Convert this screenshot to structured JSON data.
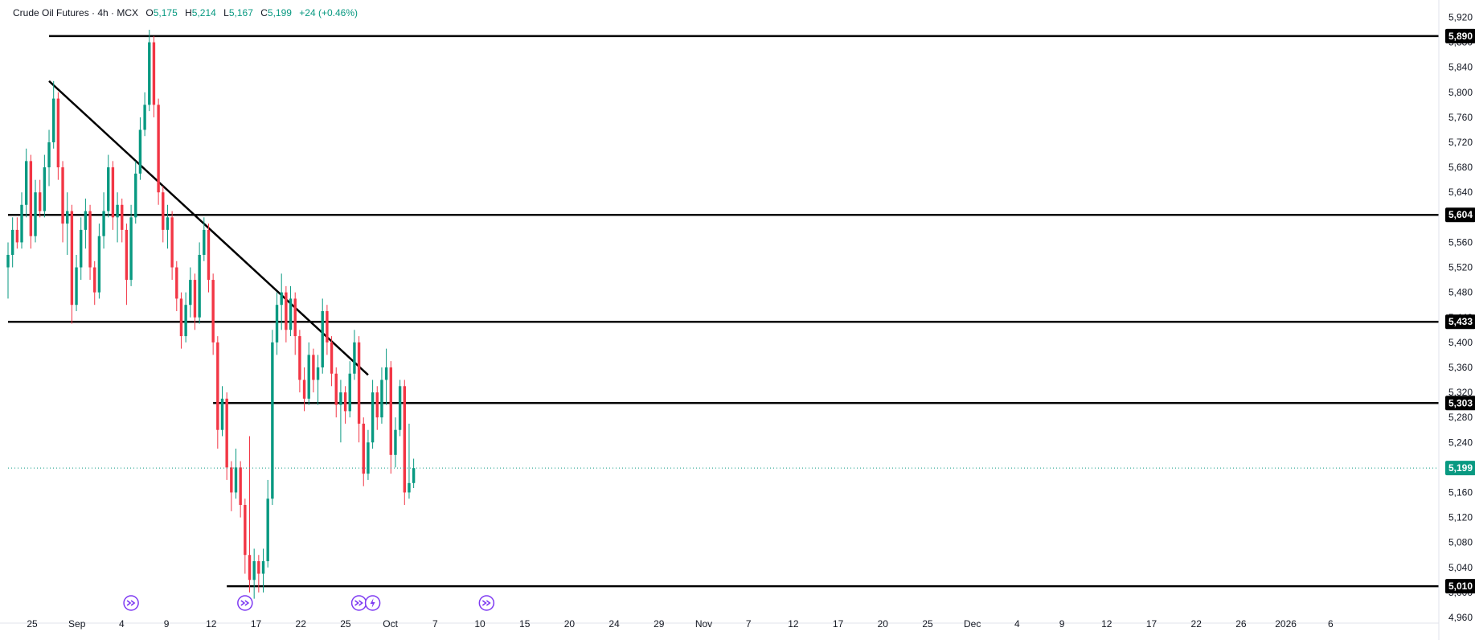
{
  "header": {
    "symbol": "Crude Oil Futures · 4h · MCX",
    "o_label": "O",
    "o_value": "5,175",
    "h_label": "H",
    "h_value": "5,214",
    "l_label": "L",
    "l_value": "5,167",
    "c_label": "C",
    "c_value": "5,199",
    "change": "+24 (+0.46%)"
  },
  "colors": {
    "up": "#089981",
    "down": "#f23645",
    "line": "#000000",
    "text": "#131722",
    "price_tag": "#089981",
    "event_icon": "#7e3af2"
  },
  "chart_data": {
    "type": "candlestick",
    "title": "Crude Oil Futures · 4h · MCX",
    "ylim": [
      4940,
      5940
    ],
    "y_ticks": [
      4960,
      5000,
      5040,
      5080,
      5120,
      5160,
      5200,
      5240,
      5280,
      5320,
      5360,
      5400,
      5440,
      5480,
      5520,
      5560,
      5600,
      5640,
      5680,
      5720,
      5760,
      5800,
      5840,
      5880,
      5920
    ],
    "x_tick_labels": [
      "25",
      "Sep",
      "4",
      "9",
      "12",
      "17",
      "22",
      "25",
      "Oct",
      "7",
      "10",
      "15",
      "20",
      "24",
      "29",
      "Nov",
      "7",
      "12",
      "17",
      "20",
      "25",
      "Dec",
      "4",
      "9",
      "12",
      "17",
      "22",
      "26",
      "2026",
      "6"
    ],
    "last_price": 5199,
    "last_price_label": "5,199",
    "horizontal_levels": [
      {
        "value": 5890,
        "label": "5,890",
        "from_index": 9
      },
      {
        "value": 5604,
        "label": "5,604",
        "from_index": 0
      },
      {
        "value": 5433,
        "label": "5,433",
        "from_index": 0
      },
      {
        "value": 5303,
        "label": "5,303",
        "from_index": 45
      },
      {
        "value": 5010,
        "label": "5,010",
        "from_index": 48
      }
    ],
    "trendline": {
      "start": {
        "x_index": 9,
        "price": 5818
      },
      "end": {
        "x_index": 79,
        "price": 5348
      }
    },
    "event_markers": [
      {
        "x_index": 27,
        "type": "dividend-icon"
      },
      {
        "x_index": 52,
        "type": "dividend-icon"
      },
      {
        "x_index": 77,
        "type": "dividend-icon"
      },
      {
        "x_index": 80,
        "type": "lightning-icon"
      },
      {
        "x_index": 105,
        "type": "dividend-icon"
      }
    ],
    "candles": [
      {
        "o": 5520,
        "h": 5560,
        "l": 5470,
        "c": 5540
      },
      {
        "o": 5540,
        "h": 5600,
        "l": 5520,
        "c": 5580
      },
      {
        "o": 5580,
        "h": 5600,
        "l": 5550,
        "c": 5560
      },
      {
        "o": 5560,
        "h": 5640,
        "l": 5550,
        "c": 5620
      },
      {
        "o": 5620,
        "h": 5710,
        "l": 5600,
        "c": 5690
      },
      {
        "o": 5690,
        "h": 5700,
        "l": 5550,
        "c": 5570
      },
      {
        "o": 5570,
        "h": 5660,
        "l": 5560,
        "c": 5640
      },
      {
        "o": 5640,
        "h": 5660,
        "l": 5600,
        "c": 5610
      },
      {
        "o": 5610,
        "h": 5700,
        "l": 5600,
        "c": 5680
      },
      {
        "o": 5680,
        "h": 5740,
        "l": 5650,
        "c": 5720
      },
      {
        "o": 5720,
        "h": 5818,
        "l": 5710,
        "c": 5790
      },
      {
        "o": 5790,
        "h": 5800,
        "l": 5660,
        "c": 5680
      },
      {
        "o": 5680,
        "h": 5690,
        "l": 5560,
        "c": 5590
      },
      {
        "o": 5590,
        "h": 5640,
        "l": 5540,
        "c": 5610
      },
      {
        "o": 5610,
        "h": 5620,
        "l": 5430,
        "c": 5460
      },
      {
        "o": 5460,
        "h": 5540,
        "l": 5450,
        "c": 5520
      },
      {
        "o": 5520,
        "h": 5600,
        "l": 5500,
        "c": 5580
      },
      {
        "o": 5580,
        "h": 5630,
        "l": 5550,
        "c": 5610
      },
      {
        "o": 5610,
        "h": 5620,
        "l": 5500,
        "c": 5520
      },
      {
        "o": 5520,
        "h": 5530,
        "l": 5460,
        "c": 5480
      },
      {
        "o": 5480,
        "h": 5590,
        "l": 5470,
        "c": 5570
      },
      {
        "o": 5570,
        "h": 5640,
        "l": 5550,
        "c": 5610
      },
      {
        "o": 5610,
        "h": 5700,
        "l": 5600,
        "c": 5680
      },
      {
        "o": 5680,
        "h": 5690,
        "l": 5580,
        "c": 5600
      },
      {
        "o": 5600,
        "h": 5640,
        "l": 5560,
        "c": 5620
      },
      {
        "o": 5620,
        "h": 5630,
        "l": 5560,
        "c": 5580
      },
      {
        "o": 5580,
        "h": 5590,
        "l": 5460,
        "c": 5500
      },
      {
        "o": 5500,
        "h": 5620,
        "l": 5490,
        "c": 5600
      },
      {
        "o": 5600,
        "h": 5690,
        "l": 5590,
        "c": 5670
      },
      {
        "o": 5670,
        "h": 5760,
        "l": 5660,
        "c": 5740
      },
      {
        "o": 5740,
        "h": 5800,
        "l": 5730,
        "c": 5780
      },
      {
        "o": 5780,
        "h": 5900,
        "l": 5770,
        "c": 5880
      },
      {
        "o": 5880,
        "h": 5890,
        "l": 5760,
        "c": 5780
      },
      {
        "o": 5780,
        "h": 5790,
        "l": 5620,
        "c": 5640
      },
      {
        "o": 5640,
        "h": 5650,
        "l": 5560,
        "c": 5580
      },
      {
        "o": 5580,
        "h": 5620,
        "l": 5550,
        "c": 5600
      },
      {
        "o": 5600,
        "h": 5610,
        "l": 5500,
        "c": 5520
      },
      {
        "o": 5520,
        "h": 5530,
        "l": 5450,
        "c": 5470
      },
      {
        "o": 5470,
        "h": 5480,
        "l": 5390,
        "c": 5410
      },
      {
        "o": 5410,
        "h": 5480,
        "l": 5400,
        "c": 5460
      },
      {
        "o": 5460,
        "h": 5520,
        "l": 5440,
        "c": 5500
      },
      {
        "o": 5500,
        "h": 5510,
        "l": 5420,
        "c": 5440
      },
      {
        "o": 5440,
        "h": 5560,
        "l": 5430,
        "c": 5540
      },
      {
        "o": 5540,
        "h": 5600,
        "l": 5530,
        "c": 5580
      },
      {
        "o": 5580,
        "h": 5590,
        "l": 5480,
        "c": 5500
      },
      {
        "o": 5500,
        "h": 5510,
        "l": 5380,
        "c": 5400
      },
      {
        "o": 5400,
        "h": 5410,
        "l": 5230,
        "c": 5260
      },
      {
        "o": 5260,
        "h": 5330,
        "l": 5250,
        "c": 5310
      },
      {
        "o": 5310,
        "h": 5320,
        "l": 5180,
        "c": 5200
      },
      {
        "o": 5200,
        "h": 5210,
        "l": 5130,
        "c": 5160
      },
      {
        "o": 5160,
        "h": 5230,
        "l": 5150,
        "c": 5200
      },
      {
        "o": 5200,
        "h": 5210,
        "l": 5120,
        "c": 5140
      },
      {
        "o": 5140,
        "h": 5150,
        "l": 5030,
        "c": 5060
      },
      {
        "o": 5060,
        "h": 5250,
        "l": 5000,
        "c": 5020
      },
      {
        "o": 5020,
        "h": 5070,
        "l": 4990,
        "c": 5050
      },
      {
        "o": 5050,
        "h": 5060,
        "l": 5000,
        "c": 5030
      },
      {
        "o": 5030,
        "h": 5070,
        "l": 5000,
        "c": 5050
      },
      {
        "o": 5050,
        "h": 5180,
        "l": 5040,
        "c": 5150
      },
      {
        "o": 5150,
        "h": 5420,
        "l": 5140,
        "c": 5400
      },
      {
        "o": 5400,
        "h": 5480,
        "l": 5380,
        "c": 5460
      },
      {
        "o": 5460,
        "h": 5510,
        "l": 5420,
        "c": 5480
      },
      {
        "o": 5480,
        "h": 5490,
        "l": 5400,
        "c": 5420
      },
      {
        "o": 5420,
        "h": 5490,
        "l": 5410,
        "c": 5470
      },
      {
        "o": 5470,
        "h": 5480,
        "l": 5380,
        "c": 5410
      },
      {
        "o": 5410,
        "h": 5420,
        "l": 5320,
        "c": 5340
      },
      {
        "o": 5340,
        "h": 5360,
        "l": 5290,
        "c": 5310
      },
      {
        "o": 5310,
        "h": 5400,
        "l": 5300,
        "c": 5380
      },
      {
        "o": 5380,
        "h": 5390,
        "l": 5320,
        "c": 5340
      },
      {
        "o": 5340,
        "h": 5380,
        "l": 5300,
        "c": 5360
      },
      {
        "o": 5360,
        "h": 5470,
        "l": 5350,
        "c": 5450
      },
      {
        "o": 5450,
        "h": 5460,
        "l": 5380,
        "c": 5400
      },
      {
        "o": 5400,
        "h": 5410,
        "l": 5330,
        "c": 5350
      },
      {
        "o": 5350,
        "h": 5360,
        "l": 5280,
        "c": 5300
      },
      {
        "o": 5300,
        "h": 5340,
        "l": 5240,
        "c": 5320
      },
      {
        "o": 5320,
        "h": 5330,
        "l": 5270,
        "c": 5290
      },
      {
        "o": 5290,
        "h": 5370,
        "l": 5280,
        "c": 5350
      },
      {
        "o": 5350,
        "h": 5420,
        "l": 5340,
        "c": 5400
      },
      {
        "o": 5400,
        "h": 5410,
        "l": 5240,
        "c": 5270
      },
      {
        "o": 5270,
        "h": 5280,
        "l": 5170,
        "c": 5190
      },
      {
        "o": 5190,
        "h": 5260,
        "l": 5180,
        "c": 5240
      },
      {
        "o": 5240,
        "h": 5340,
        "l": 5230,
        "c": 5320
      },
      {
        "o": 5320,
        "h": 5330,
        "l": 5260,
        "c": 5280
      },
      {
        "o": 5280,
        "h": 5360,
        "l": 5270,
        "c": 5340
      },
      {
        "o": 5340,
        "h": 5390,
        "l": 5300,
        "c": 5360
      },
      {
        "o": 5360,
        "h": 5370,
        "l": 5190,
        "c": 5220
      },
      {
        "o": 5220,
        "h": 5280,
        "l": 5200,
        "c": 5260
      },
      {
        "o": 5260,
        "h": 5340,
        "l": 5250,
        "c": 5330
      },
      {
        "o": 5330,
        "h": 5340,
        "l": 5140,
        "c": 5160
      },
      {
        "o": 5160,
        "h": 5270,
        "l": 5150,
        "c": 5175
      },
      {
        "o": 5175,
        "h": 5214,
        "l": 5167,
        "c": 5199
      }
    ]
  }
}
